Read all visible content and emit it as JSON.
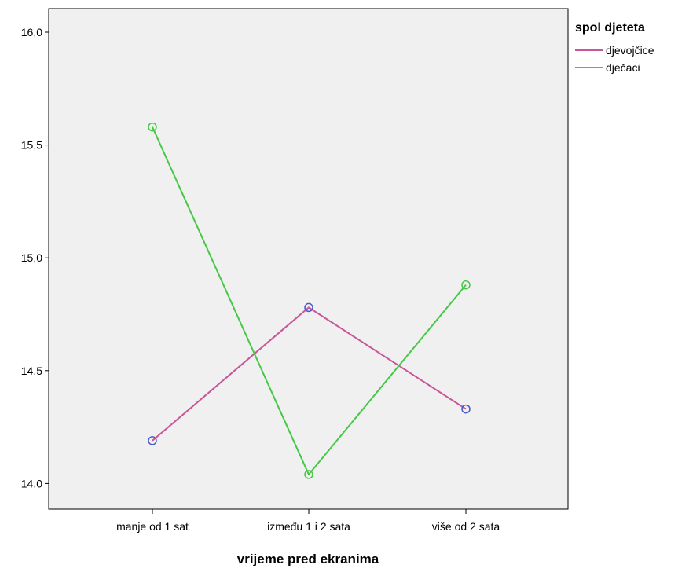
{
  "chart_data": {
    "type": "line",
    "title": "",
    "xlabel": "vrijeme pred ekranima",
    "ylabel": "",
    "categories": [
      "manje od 1 sat",
      "između 1 i 2 sata",
      "više od 2 sata"
    ],
    "ylim": [
      13.9,
      16.1
    ],
    "yticks": [
      "14,0",
      "14,5",
      "15,0",
      "15,5",
      "16,0"
    ],
    "ytick_values": [
      14.0,
      14.5,
      15.0,
      15.5,
      16.0
    ],
    "grid": false,
    "legend": {
      "title": "spol djeteta",
      "placement": "right"
    },
    "series": [
      {
        "name": "djevojčice",
        "values": [
          14.19,
          14.78,
          14.33
        ],
        "color": "#c8569b",
        "marker_color": "#4a5bd0"
      },
      {
        "name": "dječaci",
        "values": [
          15.58,
          14.04,
          14.88
        ],
        "color": "#45c845",
        "marker_color": "#45c845"
      }
    ],
    "plot_background": "#f0f0f0"
  }
}
